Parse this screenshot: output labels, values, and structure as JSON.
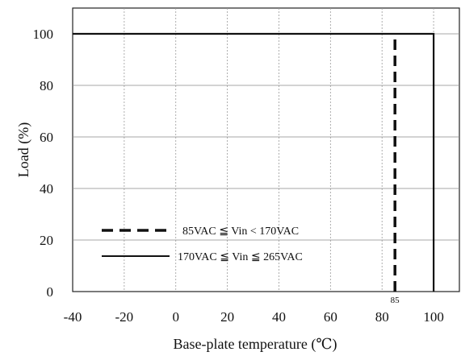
{
  "chart_data": {
    "type": "line",
    "xlabel": "Base-plate temperature (℃)",
    "ylabel": "Load (%)",
    "xlim": [
      -40,
      110
    ],
    "ylim": [
      0,
      110
    ],
    "x_ticks": [
      -40,
      -20,
      0,
      20,
      40,
      60,
      80,
      100
    ],
    "y_ticks": [
      0,
      20,
      40,
      60,
      80,
      100
    ],
    "grid": true,
    "legend_position": "lower-left",
    "annotations": [
      {
        "text": "85",
        "x": 85,
        "y": 0
      }
    ],
    "series": [
      {
        "name": "85VAC ≦ Vin < 170VAC",
        "style": "dashed",
        "color": "#111111",
        "x": [
          85,
          85
        ],
        "y": [
          0,
          98
        ]
      },
      {
        "name": "170VAC ≦ Vin ≦ 265VAC",
        "style": "solid",
        "color": "#111111",
        "x": [
          -40,
          100,
          100
        ],
        "y": [
          100,
          100,
          0
        ]
      }
    ]
  }
}
